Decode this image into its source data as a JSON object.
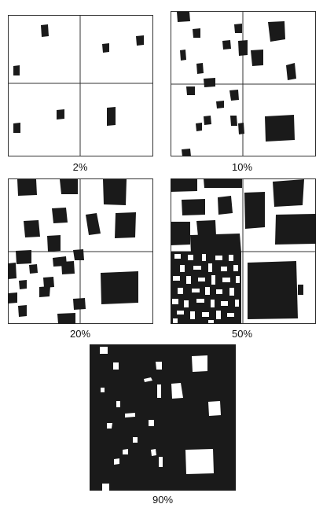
{
  "figure": {
    "panels": [
      {
        "caption": "2%",
        "coverage_percent": 2,
        "inverted": false
      },
      {
        "caption": "10%",
        "coverage_percent": 10,
        "inverted": false
      },
      {
        "caption": "20%",
        "coverage_percent": 20,
        "inverted": false
      },
      {
        "caption": "50%",
        "coverage_percent": 50,
        "inverted": false
      },
      {
        "caption": "90%",
        "coverage_percent": 90,
        "inverted": true
      }
    ],
    "colors": {
      "ink": "#1a1a1a",
      "paper": "#ffffff",
      "frame": "#333333"
    }
  }
}
